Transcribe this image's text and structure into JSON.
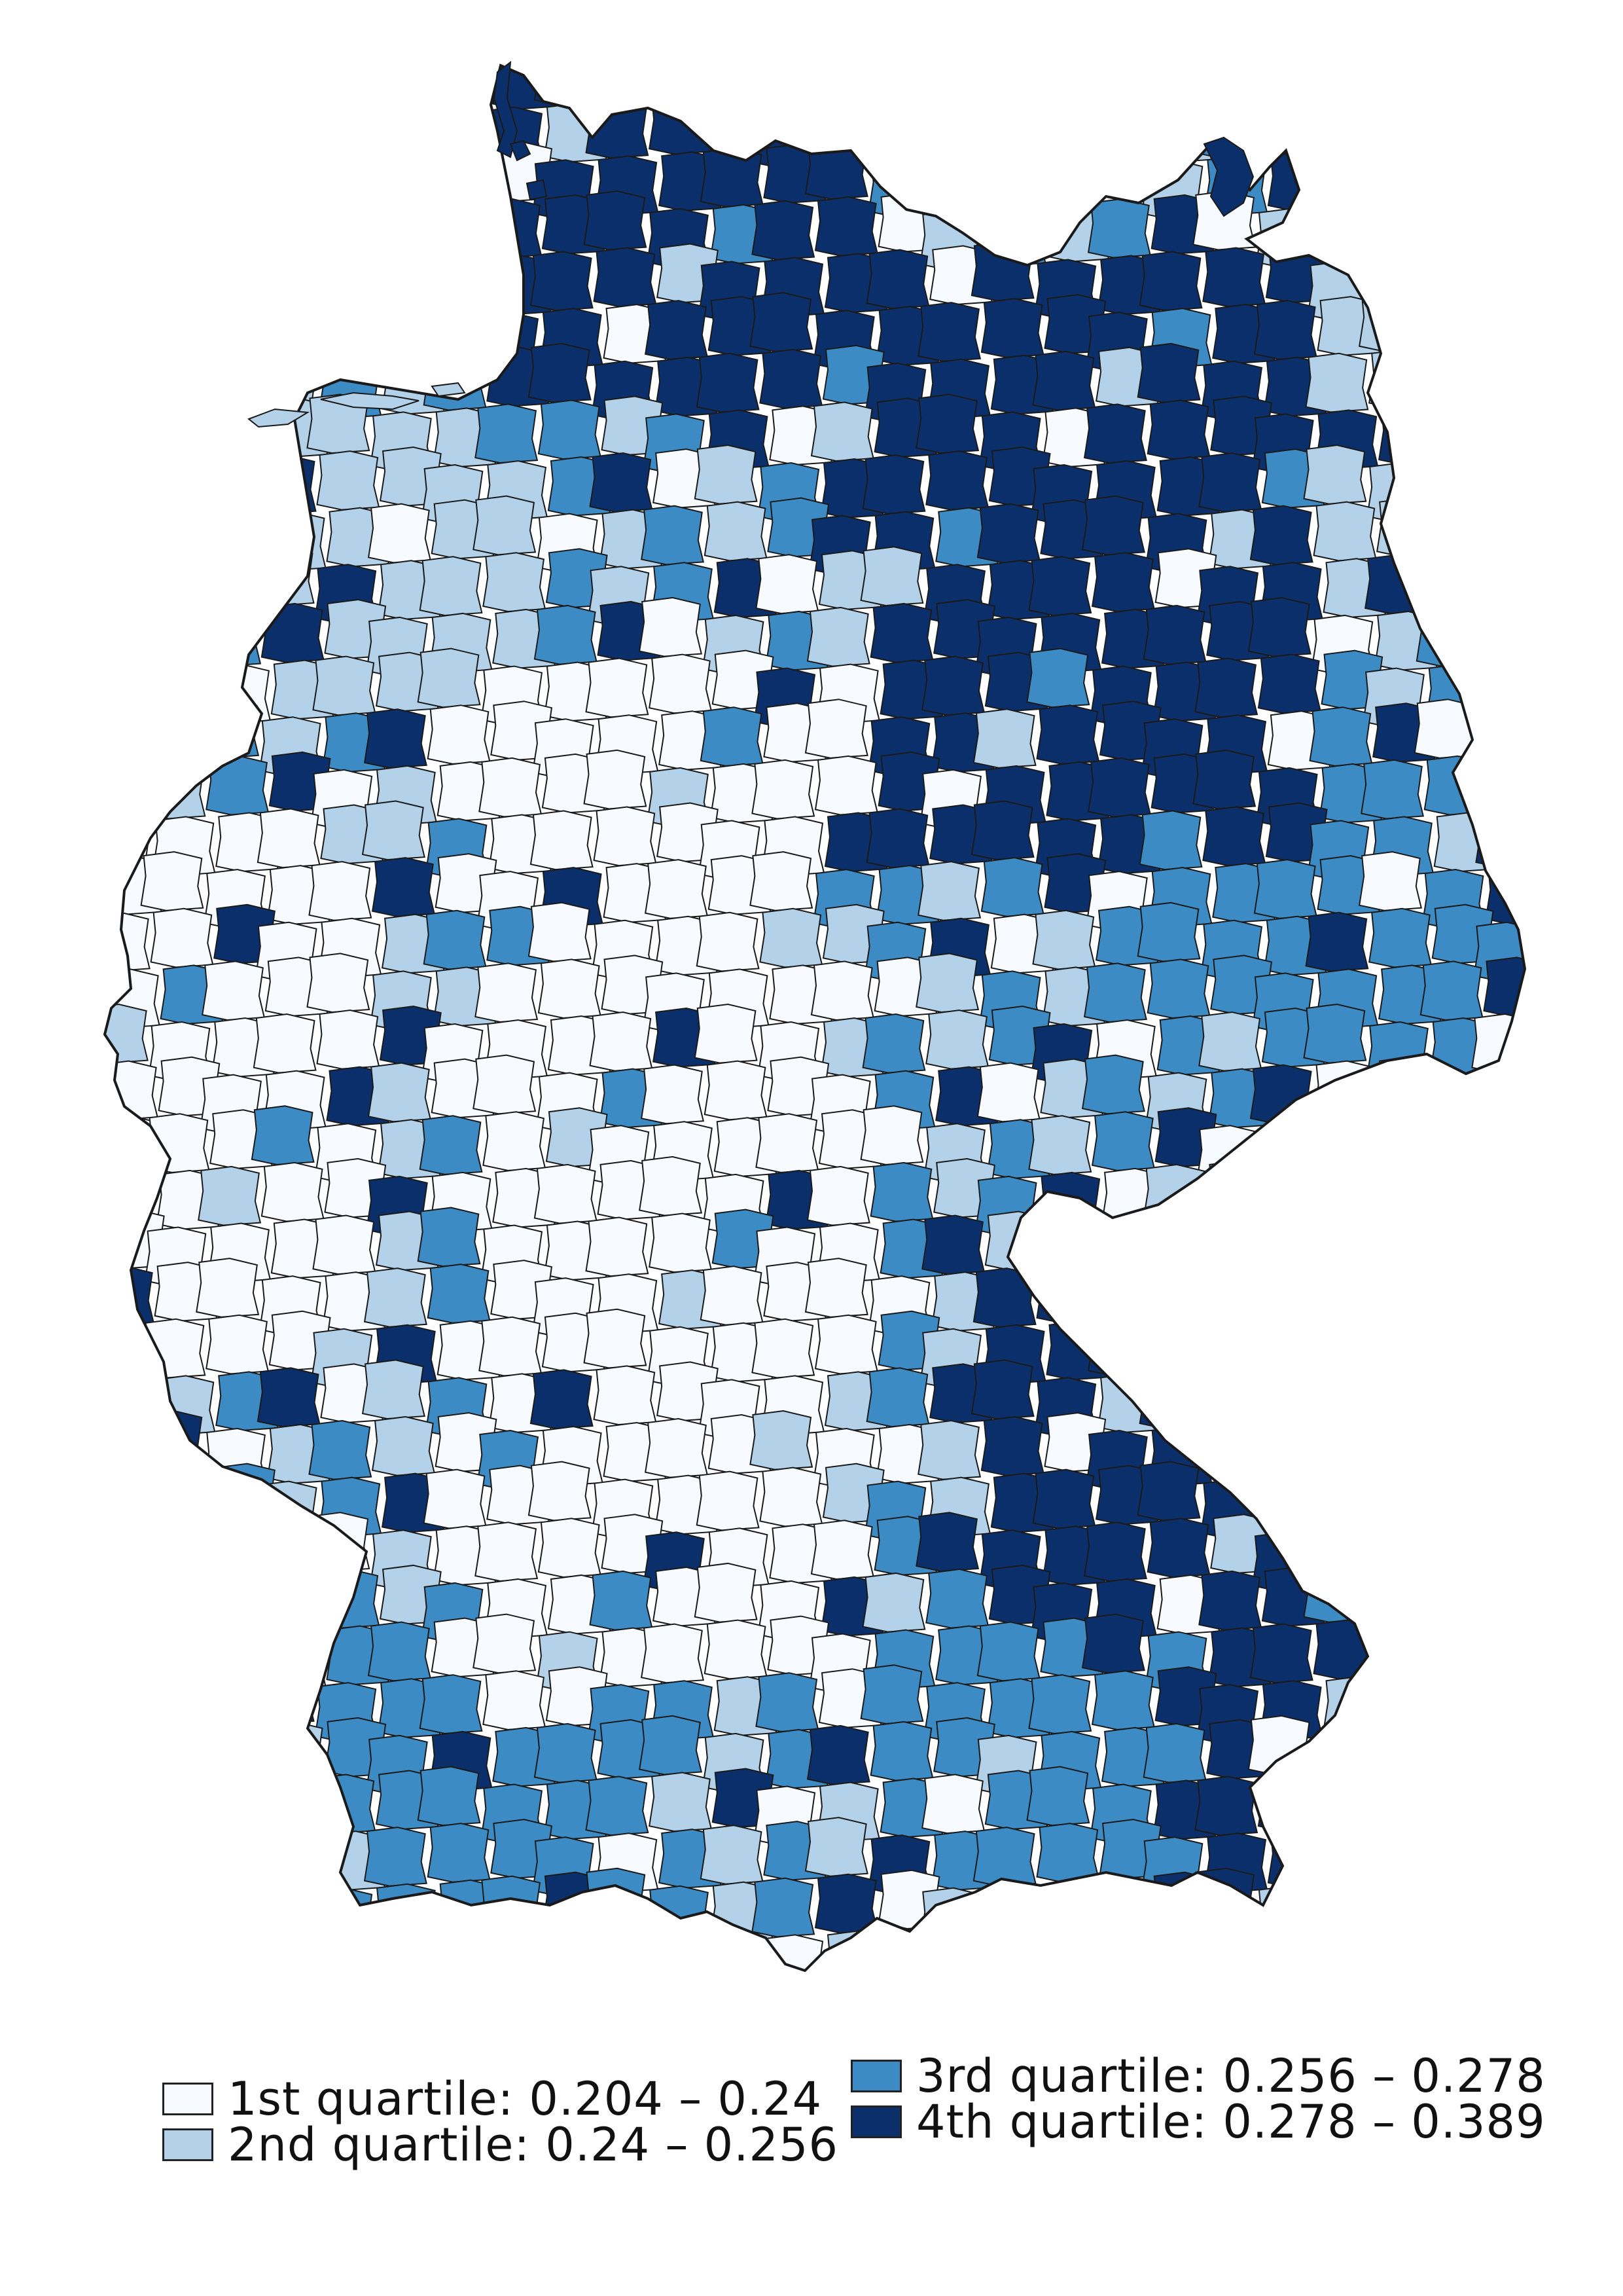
{
  "map": {
    "region": "Germany",
    "palette": {
      "q1": "#f7fbff",
      "q2": "#b3d1e8",
      "q3": "#3d8bc4",
      "q4": "#0b2f6b",
      "border": "#1a1a1a"
    }
  },
  "legend": {
    "items": [
      {
        "key": "q1",
        "label": "1st quartile: 0.204 – 0.24",
        "color": "#f7fbff"
      },
      {
        "key": "q2",
        "label": "2nd quartile: 0.24 – 0.256",
        "color": "#b3d1e8"
      },
      {
        "key": "q3",
        "label": "3rd quartile: 0.256 – 0.278",
        "color": "#3d8bc4"
      },
      {
        "key": "q4",
        "label": "4th quartile: 0.278 – 0.389",
        "color": "#0b2f6b"
      }
    ]
  }
}
